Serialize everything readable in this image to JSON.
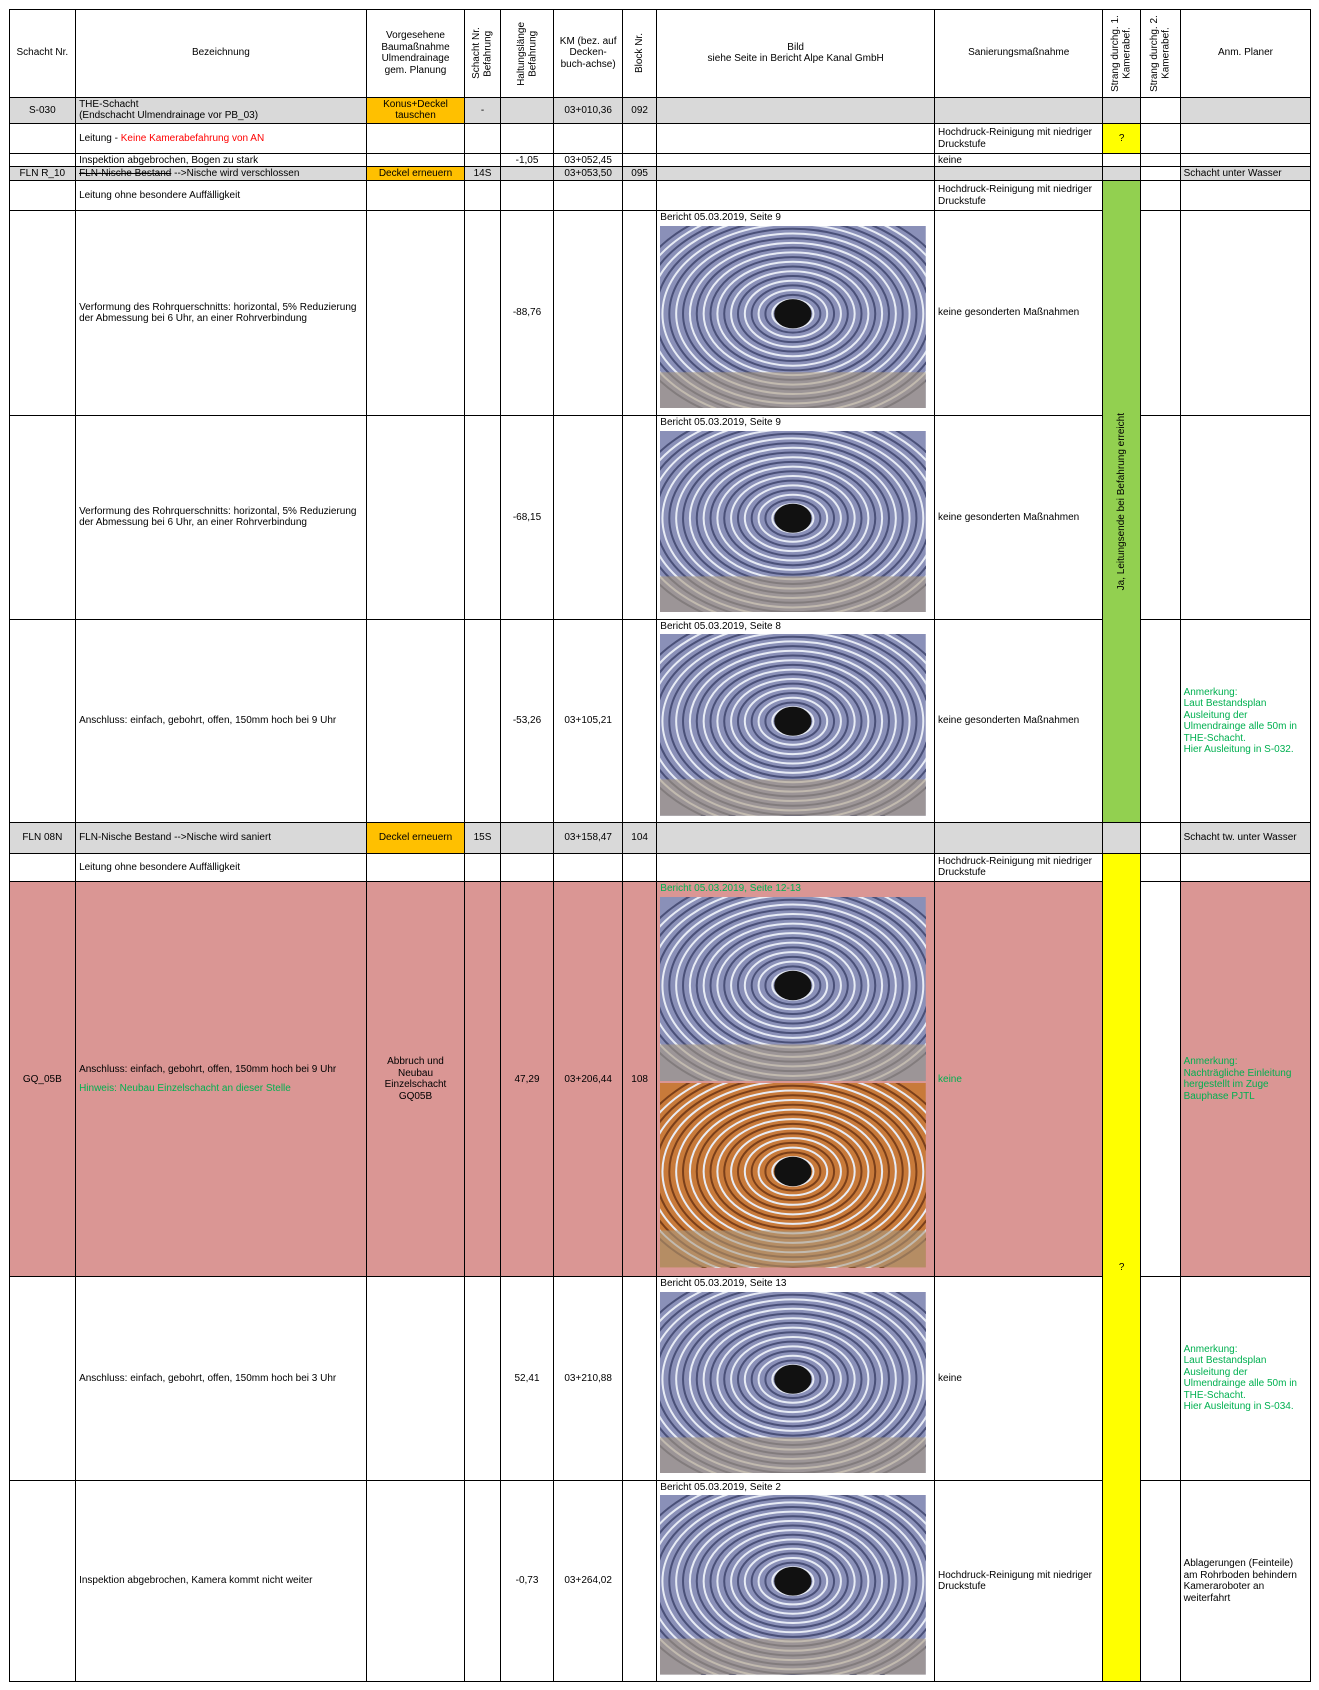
{
  "header": {
    "columns": [
      "Schacht Nr.",
      "Bezeichnung",
      "Vorgesehene Baumaßnahme Ulmendrainage gem. Planung",
      "Schacht Nr. Befahrung",
      "Haltungslänge Befahrung",
      "KM (bez. auf Decken-buch-achse)",
      "Block Nr.",
      "Bild\nsiehe Seite in Bericht Alpe Kanal GmbH",
      "Sanierungsmaßnahme",
      "Strang durchg. 1. Kamerabef.",
      "Strang durchg. 2. Kamerabef.",
      "Anm. Planer"
    ]
  },
  "rows": [
    {
      "schacht": "S-030",
      "bezeichnung": "THE-Schacht\n(Endschacht Ulmendrainage vor PB_03)",
      "massnahme": "Konus+Deckel tauschen",
      "massnahme_fill": "#ffc000",
      "befahrung": "-",
      "km": "03+010,36",
      "block": "092",
      "fill": "#d9d9d9"
    },
    {
      "bezeichnung": "Leitung -",
      "hinweis": "Keine Kamerabefahrung von AN",
      "hinweis_color": "#ff0000",
      "sanierung": "Hochdruck-Reinigung mit niedriger Druckstufe"
    },
    {
      "bezeichnung": "Inspektion abgebrochen, Bogen zu stark",
      "laenge": "-1,05",
      "km": "03+052,45",
      "sanierung": "keine"
    },
    {
      "schacht": "FLN R_10",
      "bezeichnung_struck": "FLN-Nische Bestand",
      "bezeichnung": "-->Nische wird verschlossen",
      "massnahme": "Deckel erneuern",
      "massnahme_fill": "#ffc000",
      "befahrung": "14S",
      "km": "03+053,50",
      "block": "095",
      "anm": "Schacht unter Wasser",
      "fill": "#d9d9d9"
    },
    {
      "bezeichnung": "Leitung ohne besondere Auffälligkeit",
      "sanierung": "Hochdruck-Reinigung mit niedriger Druckstufe"
    },
    {
      "bezeichnung": "Verformung des Rohrquerschnitts: horizontal, 5% Reduzierung der Abmessung bei 6 Uhr, an einer Rohrverbindung",
      "laenge": "-88,76",
      "bild": "Bericht 05.03.2019, Seite 9",
      "sanierung": "keine gesonderten Maßnahmen"
    },
    {
      "bezeichnung": "Verformung des Rohrquerschnitts: horizontal, 5% Reduzierung der Abmessung bei 6 Uhr, an einer Rohrverbindung",
      "laenge": "-68,15",
      "bild": "Bericht 05.03.2019, Seite 9",
      "sanierung": "keine gesonderten Maßnahmen"
    },
    {
      "bezeichnung": "Anschluss: einfach, gebohrt, offen, 150mm hoch bei 9 Uhr",
      "laenge": "-53,26",
      "km": "03+105,21",
      "bild": "Bericht 05.03.2019, Seite 8",
      "sanierung": "keine gesonderten Maßnahmen",
      "anm": "Anmerkung:\nLaut Bestandsplan Ausleitung der Ulmendrainge alle 50m in THE-Schacht.\nHier Ausleitung in S-032.",
      "anm_color": "#00b050"
    },
    {
      "schacht": "FLN 08N",
      "bezeichnung": "FLN-Nische Bestand -->Nische wird saniert",
      "massnahme": "Deckel erneuern",
      "massnahme_fill": "#ffc000",
      "befahrung": "15S",
      "km": "03+158,47",
      "block": "104",
      "anm": "Schacht tw. unter Wasser",
      "fill": "#d9d9d9"
    },
    {
      "bezeichnung": "Leitung ohne besondere Auffälligkeit",
      "sanierung": "Hochdruck-Reinigung mit niedriger Druckstufe"
    },
    {
      "schacht": "GQ_05B",
      "bezeichnung": "Anschluss: einfach, gebohrt, offen, 150mm hoch bei 9 Uhr",
      "hinweis": "Hinweis: Neubau Einzelschacht an dieser Stelle",
      "hinweis_color": "#00b050",
      "massnahme": "Abbruch und Neubau Einzelschacht GQ05B",
      "laenge": "47,29",
      "km": "03+206,44",
      "block": "108",
      "bild": "Bericht 05.03.2019, Seite 12-13",
      "bild_color": "#00b050",
      "sanierung": "keine",
      "sanierung_color": "#00b050",
      "anm": "Anmerkung:\nNachträgliche Einleitung hergestellt im Zuge Bauphase PJTL",
      "anm_color": "#00b050",
      "fill": "#da9694"
    },
    {
      "bezeichnung": "Anschluss: einfach, gebohrt, offen, 150mm hoch bei 3 Uhr",
      "laenge": "52,41",
      "km": "03+210,88",
      "bild": "Bericht 05.03.2019, Seite 13",
      "sanierung": "keine",
      "anm": "Anmerkung:\nLaut Bestandsplan Ausleitung der Ulmendrainge alle 50m in THE-Schacht.\nHier Ausleitung in S-034.",
      "anm_color": "#00b050"
    },
    {
      "bezeichnung": "Inspektion abgebrochen, Kamera kommt nicht weiter",
      "laenge": "-0,73",
      "km": "03+264,02",
      "bild": "Bericht 05.03.2019, Seite 2",
      "sanierung": "Hochdruck-Reinigung mit niedriger Druckstufe",
      "anm": "Ablagerungen (Feinteile) am Rohrboden behindern Kameraroboter an weiterfahrt"
    }
  ],
  "strang1": [
    {
      "text": "?",
      "fill": "#ffff00"
    },
    {
      "text": "Ja, Leitungsende bei Befahrung erreicht",
      "fill": "#92d050"
    },
    {
      "text": "?",
      "fill": "#ffff00"
    }
  ]
}
